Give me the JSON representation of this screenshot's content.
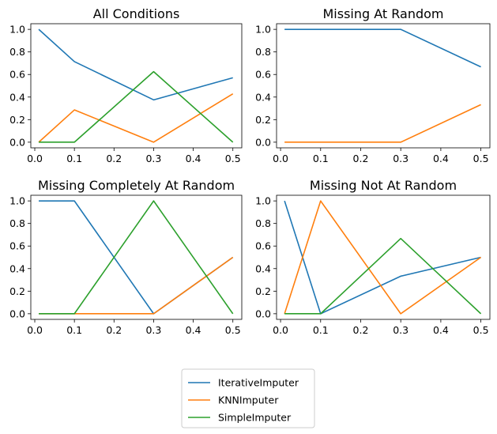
{
  "chart_data": [
    {
      "type": "line",
      "title": "All Conditions",
      "x": [
        0.01,
        0.1,
        0.3,
        0.5
      ],
      "xlim": [
        0,
        0.5
      ],
      "ylim": [
        0,
        1
      ],
      "xticks": [
        "0.0",
        "0.1",
        "0.2",
        "0.3",
        "0.4",
        "0.5"
      ],
      "yticks": [
        "0.0",
        "0.2",
        "0.4",
        "0.6",
        "0.8",
        "1.0"
      ],
      "series": [
        {
          "name": "IterativeImputer",
          "color": "#1f77b4",
          "values": [
            1.0,
            0.714,
            0.375,
            0.571
          ]
        },
        {
          "name": "KNNImputer",
          "color": "#ff7f0e",
          "values": [
            0.0,
            0.286,
            0.0,
            0.429
          ]
        },
        {
          "name": "SimpleImputer",
          "color": "#2ca02c",
          "values": [
            0.0,
            0.0,
            0.625,
            0.0
          ]
        }
      ]
    },
    {
      "type": "line",
      "title": "Missing At Random",
      "x": [
        0.01,
        0.1,
        0.3,
        0.5
      ],
      "xlim": [
        0,
        0.5
      ],
      "ylim": [
        0,
        1
      ],
      "xticks": [
        "0.0",
        "0.1",
        "0.2",
        "0.3",
        "0.4",
        "0.5"
      ],
      "yticks": [
        "0.0",
        "0.2",
        "0.4",
        "0.6",
        "0.8",
        "1.0"
      ],
      "series": [
        {
          "name": "IterativeImputer",
          "color": "#1f77b4",
          "values": [
            1.0,
            1.0,
            1.0,
            0.667
          ]
        },
        {
          "name": "KNNImputer",
          "color": "#ff7f0e",
          "values": [
            0.0,
            0.0,
            0.0,
            0.333
          ]
        }
      ]
    },
    {
      "type": "line",
      "title": "Missing Completely At Random",
      "x": [
        0.01,
        0.1,
        0.3,
        0.5
      ],
      "xlim": [
        0,
        0.5
      ],
      "ylim": [
        0,
        1
      ],
      "xticks": [
        "0.0",
        "0.1",
        "0.2",
        "0.3",
        "0.4",
        "0.5"
      ],
      "yticks": [
        "0.0",
        "0.2",
        "0.4",
        "0.6",
        "0.8",
        "1.0"
      ],
      "series": [
        {
          "name": "IterativeImputer",
          "color": "#1f77b4",
          "values": [
            1.0,
            1.0,
            0.0,
            0.5
          ]
        },
        {
          "name": "KNNImputer",
          "color": "#ff7f0e",
          "values": [
            0.0,
            0.0,
            0.0,
            0.5
          ]
        },
        {
          "name": "SimpleImputer",
          "color": "#2ca02c",
          "values": [
            0.0,
            0.0,
            1.0,
            0.0
          ]
        }
      ]
    },
    {
      "type": "line",
      "title": "Missing Not At Random",
      "x": [
        0.01,
        0.1,
        0.3,
        0.5
      ],
      "xlim": [
        0,
        0.5
      ],
      "ylim": [
        0,
        1
      ],
      "xticks": [
        "0.0",
        "0.1",
        "0.2",
        "0.3",
        "0.4",
        "0.5"
      ],
      "yticks": [
        "0.0",
        "0.2",
        "0.4",
        "0.6",
        "0.8",
        "1.0"
      ],
      "series": [
        {
          "name": "IterativeImputer",
          "color": "#1f77b4",
          "values": [
            1.0,
            0.0,
            0.333,
            0.5
          ]
        },
        {
          "name": "KNNImputer",
          "color": "#ff7f0e",
          "values": [
            0.0,
            1.0,
            0.0,
            0.5
          ]
        },
        {
          "name": "SimpleImputer",
          "color": "#2ca02c",
          "values": [
            0.0,
            0.0,
            0.667,
            0.0
          ]
        }
      ]
    }
  ],
  "legend": {
    "placement": "bottom-center",
    "entries": [
      {
        "name": "IterativeImputer",
        "color": "#1f77b4"
      },
      {
        "name": "KNNImputer",
        "color": "#ff7f0e"
      },
      {
        "name": "SimpleImputer",
        "color": "#2ca02c"
      }
    ]
  }
}
